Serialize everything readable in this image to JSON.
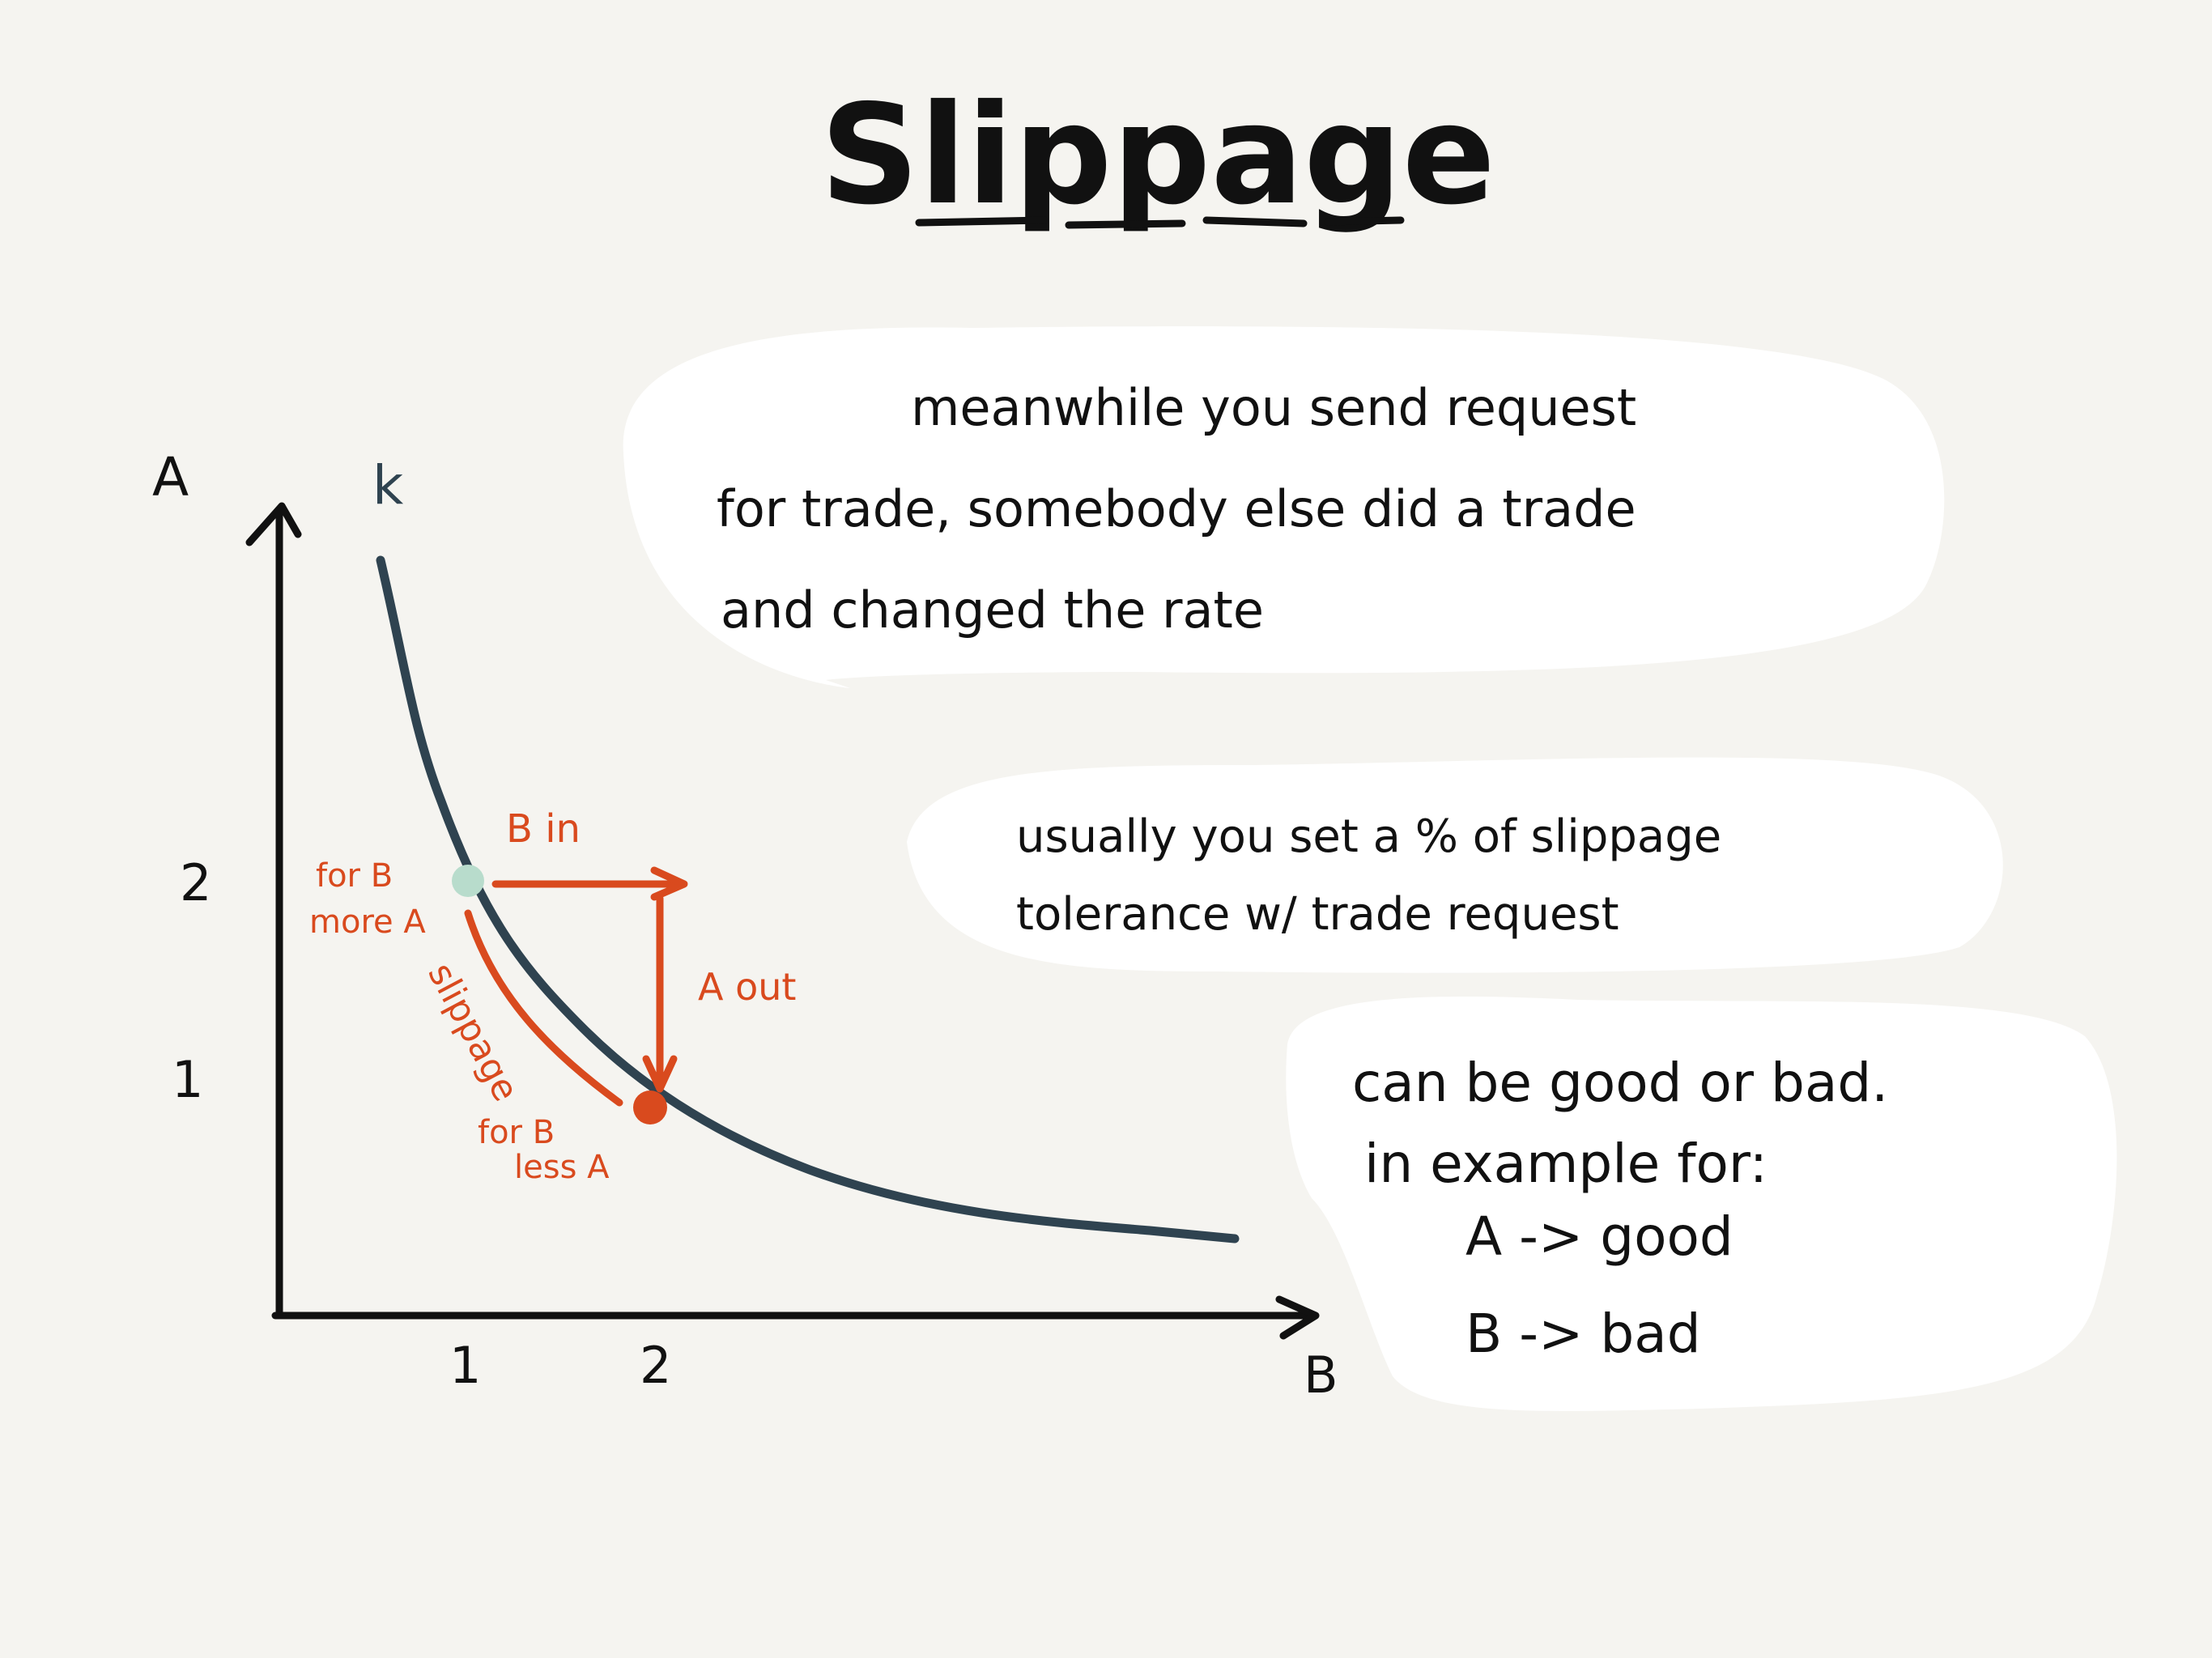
{
  "title": "Slippage",
  "axes": {
    "y_label": "A",
    "x_label": "B",
    "curve_label": "k",
    "y_ticks": [
      "2",
      "1"
    ],
    "x_ticks": [
      "1",
      "2"
    ]
  },
  "annotations": {
    "b_in": "B in",
    "a_out": "A out",
    "slippage": "slippage",
    "more_a_line1": "for B",
    "more_a_line2": "more A",
    "less_a_line1": "for B",
    "less_a_line2": "less A"
  },
  "bubbles": {
    "meanwhile": {
      "line1": "meanwhile you send request",
      "line2": "for trade, somebody else did a trade",
      "line3": "and changed the rate"
    },
    "tolerance": {
      "line1": "usually you set a % of slippage",
      "line2": "tolerance w/ trade request"
    },
    "goodbad": {
      "line1": "can be good or bad.",
      "line2": "in example for:",
      "line3": "A -> good",
      "line4": "B -> bad"
    }
  },
  "colors": {
    "background": "#f5f4f0",
    "ink": "#111111",
    "curve": "#2f4350",
    "accent": "#d94a1e",
    "start_point": "#b8dccc",
    "bubble": "#ffffff"
  }
}
